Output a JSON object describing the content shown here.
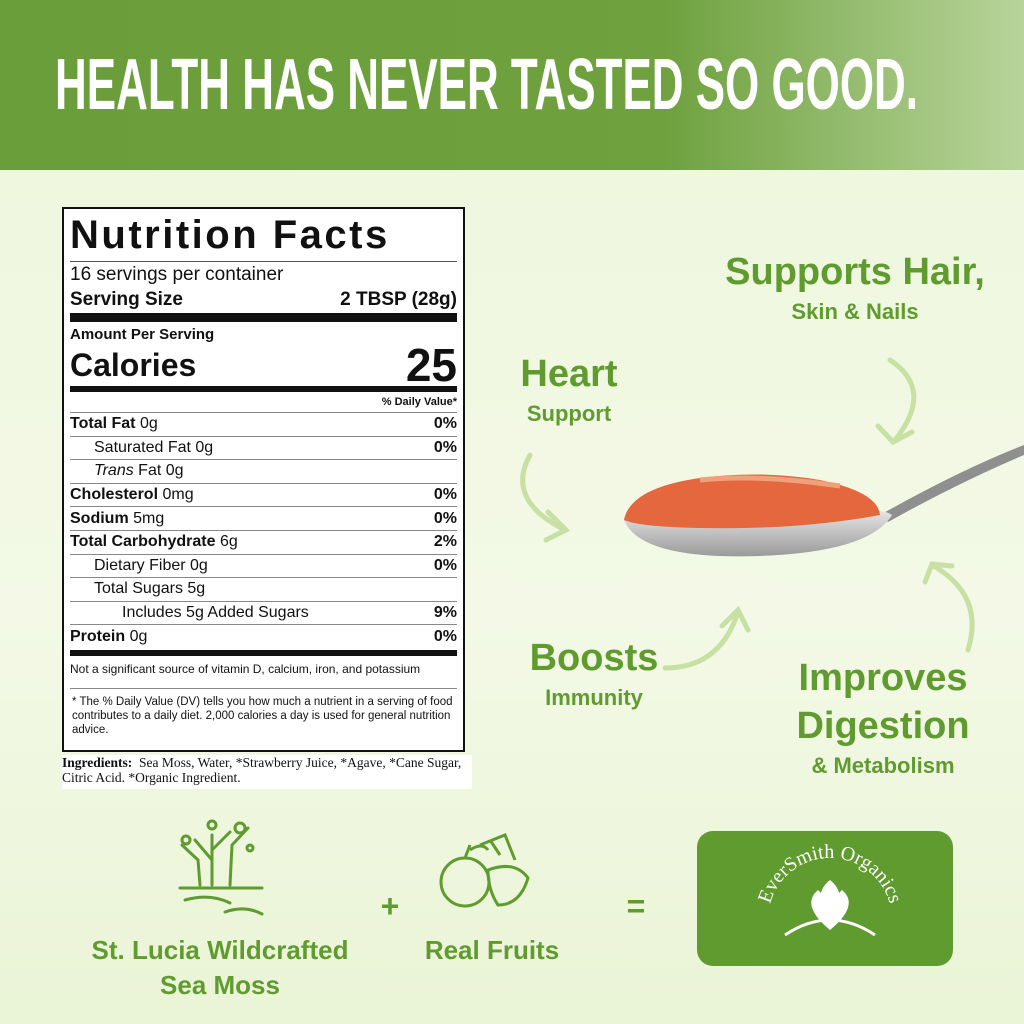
{
  "header": {
    "title": "HEALTH HAS NEVER TASTED SO GOOD."
  },
  "nutrition": {
    "title": "Nutrition Facts",
    "servings": "16 servings per container",
    "serving_size_label": "Serving Size",
    "serving_size": "2 TBSP (28g)",
    "amount_per_serving": "Amount Per Serving",
    "calories_label": "Calories",
    "calories": "25",
    "dv_header": "% Daily Value*",
    "rows": [
      {
        "name": "Total Fat",
        "amount": "0g",
        "dv": "0%"
      },
      {
        "name": "Saturated Fat",
        "amount": "0g",
        "dv": "0%"
      },
      {
        "name_italic": "Trans",
        "name": "Fat",
        "amount": "0g"
      },
      {
        "name": "Cholesterol",
        "amount": "0mg",
        "dv": "0%"
      },
      {
        "name": "Sodium",
        "amount": "5mg",
        "dv": "0%"
      },
      {
        "name": "Total Carbohydrate",
        "amount": "6g",
        "dv": "2%"
      },
      {
        "name": "Dietary Fiber",
        "amount": "0g",
        "dv": "0%"
      },
      {
        "name": "Total Sugars",
        "amount": "5g"
      },
      {
        "name": "Includes 5g Added Sugars",
        "dv": "9%"
      },
      {
        "name": "Protein",
        "amount": "0g",
        "dv": "0%"
      }
    ],
    "note": "Not a significant source of vitamin D, calcium, iron, and potassium",
    "footnote": "* The % Daily Value (DV) tells you how much a nutrient in a serving of food contributes to a daily diet. 2,000 calories a day is used for general nutrition advice.",
    "ingredients_label": "Ingredients:",
    "ingredients": "Sea Moss, Water, *Strawberry Juice, *Agave, *Cane Sugar, Citric Acid. *Organic Ingredient."
  },
  "benefits": [
    {
      "title": "Supports Hair,",
      "subtitle": "Skin & Nails"
    },
    {
      "title": "Heart",
      "subtitle": "Support"
    },
    {
      "title": "Boosts",
      "subtitle": "Immunity"
    },
    {
      "title": "Improves Digestion",
      "subtitle": "& Metabolism"
    }
  ],
  "formula": {
    "ingredient1": "St. Lucia Wildcrafted Sea Moss",
    "plus": "+",
    "ingredient2": "Real Fruits",
    "equals": "=",
    "brand": "EverSmith Organics"
  }
}
